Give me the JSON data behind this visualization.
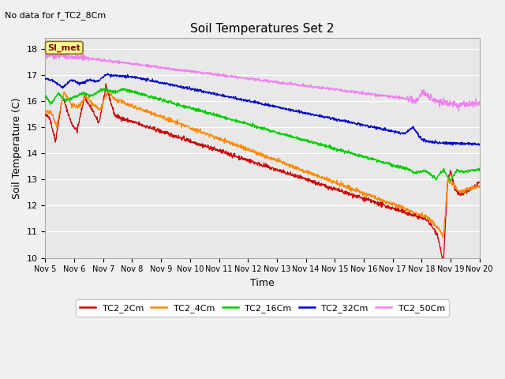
{
  "title": "Soil Temperatures Set 2",
  "subtitle": "No data for f_TC2_8Cm",
  "xlabel": "Time",
  "ylabel": "Soil Temperature (C)",
  "ylim": [
    10.0,
    18.4
  ],
  "yticks": [
    10.0,
    11.0,
    12.0,
    13.0,
    14.0,
    15.0,
    16.0,
    17.0,
    18.0
  ],
  "xlim_days": [
    5,
    20
  ],
  "xtick_labels": [
    "Nov 5",
    "Nov 6",
    "Nov 7",
    "Nov 8",
    "Nov 9",
    "Nov 10",
    "Nov 11",
    "Nov 12",
    "Nov 13",
    "Nov 14",
    "Nov 15",
    "Nov 16",
    "Nov 17",
    "Nov 18",
    "Nov 19",
    "Nov 20"
  ],
  "colors": {
    "TC2_2Cm": "#cc0000",
    "TC2_4Cm": "#ff8800",
    "TC2_16Cm": "#00cc00",
    "TC2_32Cm": "#0000cc",
    "TC2_50Cm": "#ee82ee"
  },
  "legend_labels": [
    "TC2_2Cm",
    "TC2_4Cm",
    "TC2_16Cm",
    "TC2_32Cm",
    "TC2_50Cm"
  ],
  "background_color": "#e8e8e8",
  "grid_color": "#ffffff",
  "fig_bg": "#f0f0f0"
}
